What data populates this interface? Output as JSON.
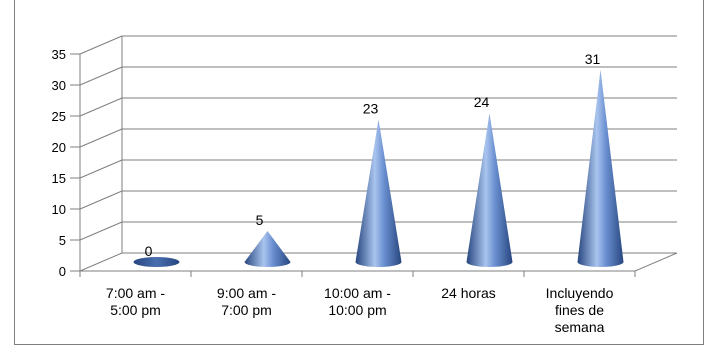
{
  "chart_data": {
    "type": "bar",
    "style": "3d-cone",
    "categories": [
      [
        "7:00 am -",
        "5:00 pm"
      ],
      [
        "9:00 am -",
        "7:00 pm"
      ],
      [
        "10:00 am -",
        "10:00 pm"
      ],
      [
        "24 horas"
      ],
      [
        "Incluyendo",
        "fines de",
        "semana"
      ]
    ],
    "values": [
      0,
      5,
      23,
      24,
      31
    ],
    "data_labels": [
      "0",
      "5",
      "23",
      "24",
      "31"
    ],
    "y_ticks": [
      "0",
      "5",
      "10",
      "15",
      "20",
      "25",
      "30",
      "35"
    ],
    "ylim": [
      0,
      35
    ],
    "title": "",
    "xlabel": "",
    "ylabel": "",
    "grid": true,
    "legend": false,
    "colors": {
      "cone_light": "#a9c4ee",
      "cone_mid": "#5a82c6",
      "cone_dark": "#27467f",
      "gridline": "#7f7f7f",
      "text": "#000000"
    }
  }
}
